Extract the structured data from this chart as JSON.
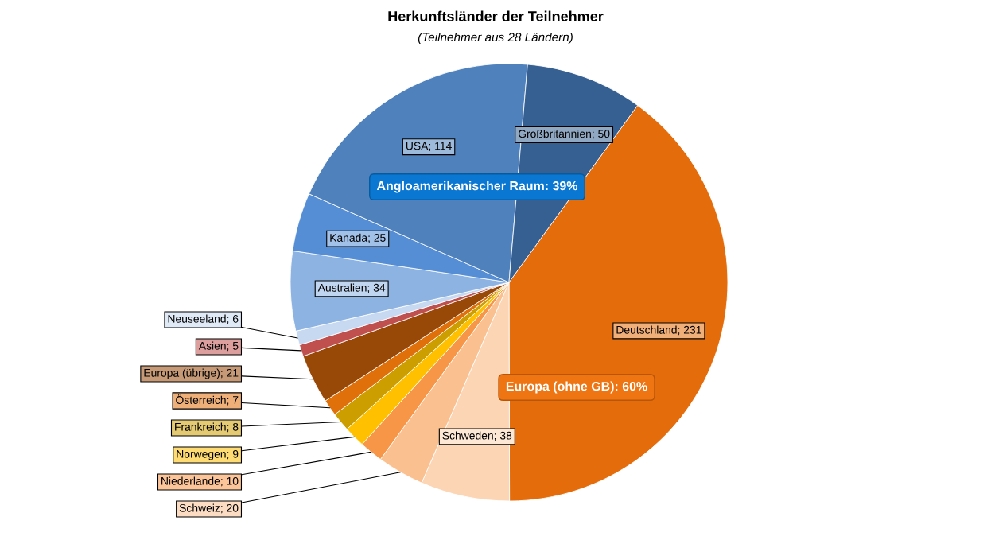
{
  "chart_data": {
    "type": "pie",
    "title": "Herkunftsländer der Teilnehmer",
    "subtitle": "(Teilnehmer aus 28 Ländern)",
    "categories": [
      null,
      null,
      null,
      null,
      null,
      null,
      null,
      null,
      null,
      null,
      null,
      null,
      null,
      null
    ],
    "values": [
      231,
      38,
      20,
      10,
      9,
      8,
      7,
      21,
      5,
      6,
      34,
      25,
      114,
      50
    ],
    "value_labels": [
      "Deutschland; 231",
      "Schweden; 38",
      "Schweiz; 20",
      "Niederlande; 10",
      "Norwegen; 9",
      "Frankreich; 8",
      "Österreich; 7",
      "Europa (übrige); 21",
      "Asien; 5",
      "Neuseeland; 6",
      "Australien; 34",
      "Kanada; 25",
      "USA; 114",
      "Großbritannien; 50"
    ],
    "colors": [
      "#e46c0a",
      "#fcd5b5",
      "#fac090",
      "#f79646",
      "#ffc000",
      "#cc9e00",
      "#e0700a",
      "#984807",
      "#c0504d",
      "#c6d9f1",
      "#8db3e2",
      "#558ed5",
      "#4f81bd",
      "#376092"
    ],
    "annotations": [
      "Angloamerikanischer Raum: 39%",
      "Europa (ohne GB): 60%"
    ]
  }
}
